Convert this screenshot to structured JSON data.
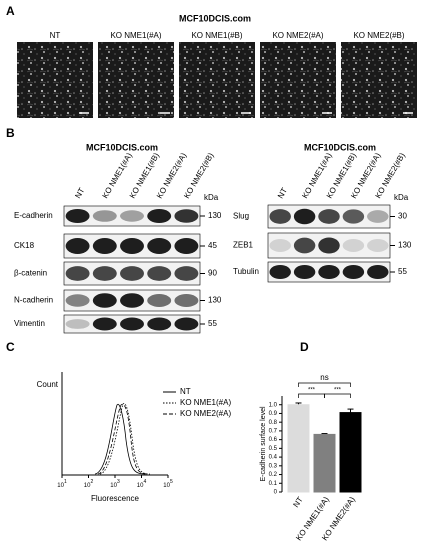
{
  "panel_a": {
    "label": "A",
    "title": "MCF10DCIS.com",
    "images": [
      "NT",
      "KO NME1(#A)",
      "KO NME1(#B)",
      "KO NME2(#A)",
      "KO NME2(#B)"
    ]
  },
  "panel_b": {
    "label": "B",
    "left": {
      "title": "MCF10DCIS.com",
      "lanes": [
        "NT",
        "KO NME1(#A)",
        "KO NME1(#B)",
        "KO NME2(#A)",
        "KO NME2(#B)"
      ],
      "unit": "kDa",
      "rows": [
        {
          "name": "E-cadherin",
          "kda": 130
        },
        {
          "name": "CK18",
          "kda": 45
        },
        {
          "name": "β-catenin",
          "kda": 90
        },
        {
          "name": "N-cadherin",
          "kda": 130
        },
        {
          "name": "Vimentin",
          "kda": 55
        }
      ]
    },
    "right": {
      "title": "MCF10DCIS.com",
      "lanes": [
        "NT",
        "KO NME1(#A)",
        "KO NME1(#B)",
        "KO NME2(#A)",
        "KO NME2(#B)"
      ],
      "unit": "kDa",
      "rows": [
        {
          "name": "Slug",
          "kda": 30
        },
        {
          "name": "ZEB1",
          "kda": 130
        },
        {
          "name": "Tubulin",
          "kda": 55
        }
      ]
    }
  },
  "panel_c": {
    "label": "C",
    "y_label": "Count",
    "x_label": "Fluorescence",
    "log_x": true,
    "xlim": [
      10,
      100000
    ],
    "xticks": [
      {
        "value": 10,
        "base": "10",
        "exp": "1"
      },
      {
        "value": 100,
        "base": "10",
        "exp": "2"
      },
      {
        "value": 1000,
        "base": "10",
        "exp": "3"
      },
      {
        "value": 10000,
        "base": "10",
        "exp": "4"
      },
      {
        "value": 100000,
        "base": "10",
        "exp": "5"
      }
    ],
    "legend": [
      "NT",
      "KO NME1(#A)",
      "KO NME2(#A)"
    ]
  },
  "panel_d": {
    "label": "D",
    "type": "bar",
    "y_label": "E-cadherin surface level",
    "categories": [
      "NT",
      "KO NME1(#A)",
      "KO NME2(#A)"
    ],
    "values": [
      1.0,
      0.66,
      0.91
    ],
    "errors": [
      0.02,
      0.01,
      0.04
    ],
    "colors": [
      "#dcdcdc",
      "#808080",
      "#000000"
    ],
    "ylim": [
      0,
      1.1
    ],
    "yticks": [
      0,
      0.1,
      0.2,
      0.3,
      0.4,
      0.5,
      0.6,
      0.7,
      0.8,
      0.9,
      {
        "value": 1,
        "label": "1.0"
      }
    ],
    "annotations": [
      "ns",
      "***",
      "***"
    ]
  }
}
